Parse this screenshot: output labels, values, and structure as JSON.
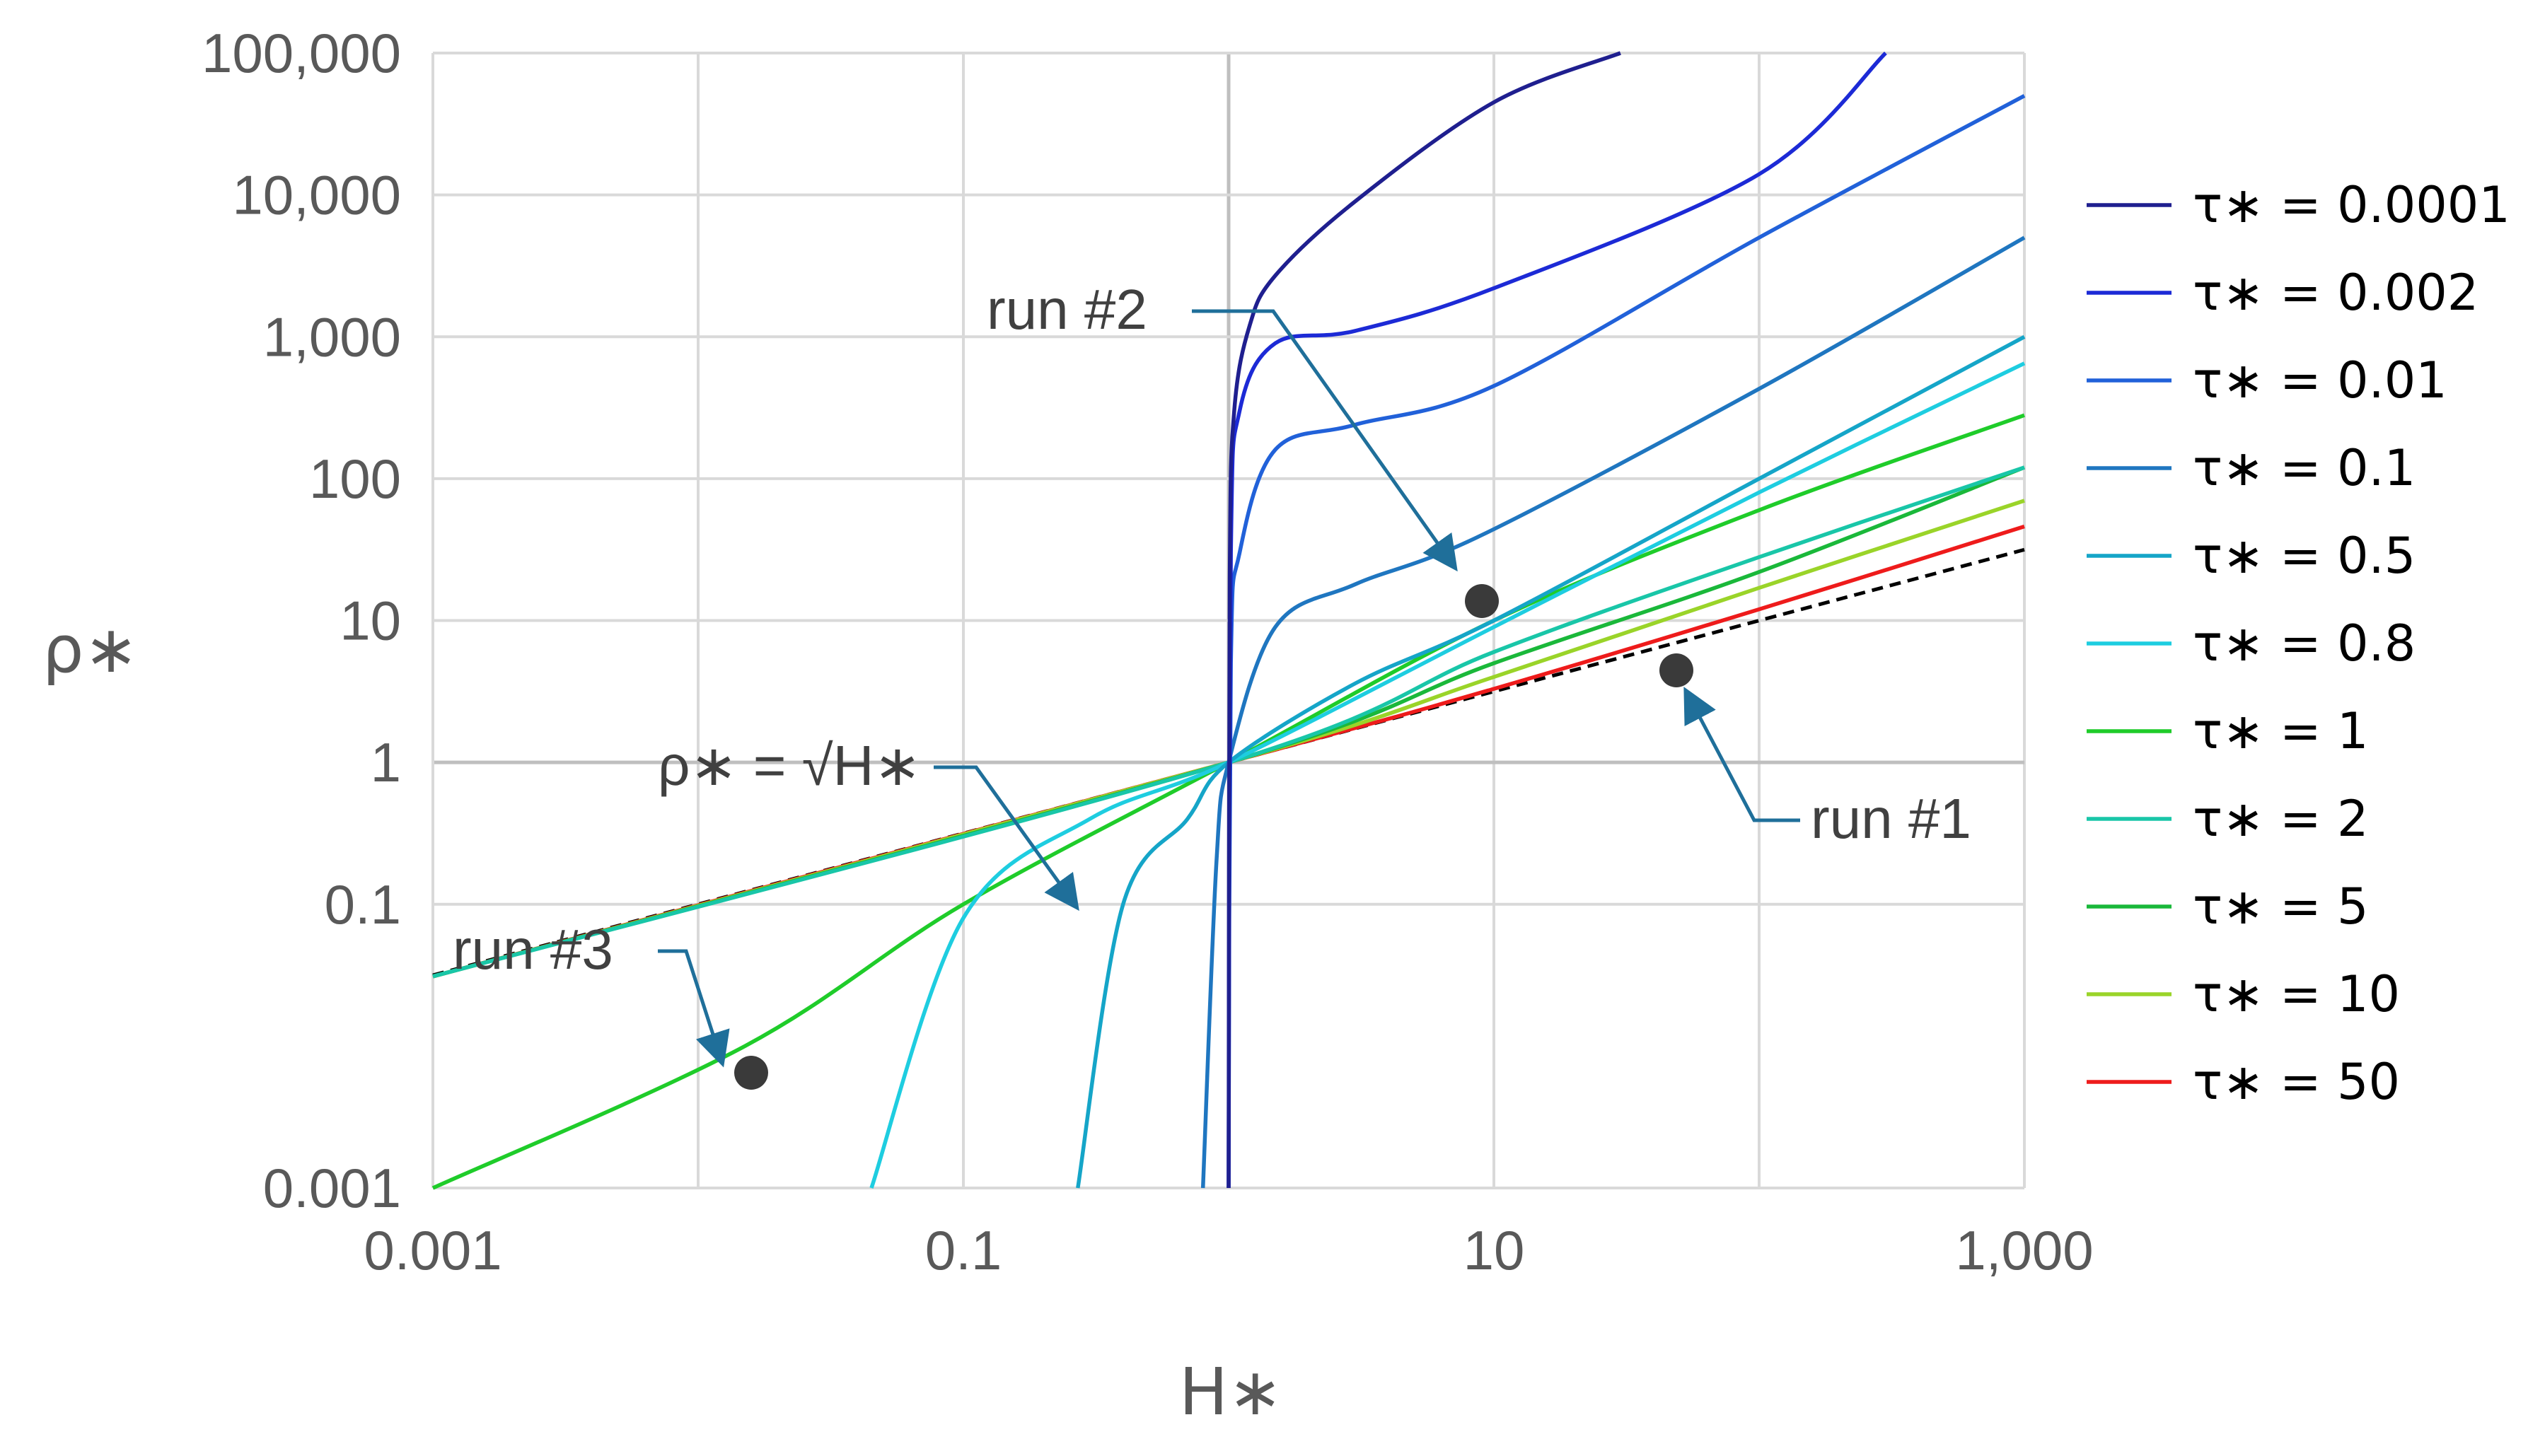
{
  "chart_data": {
    "type": "line",
    "title": "",
    "xlabel": "H∗",
    "ylabel": "ρ∗",
    "x_scale": "log",
    "y_scale": "log",
    "xlim": [
      0.001,
      1000
    ],
    "ylim": [
      0.001,
      100000
    ],
    "x_ticks": [
      0.001,
      0.1,
      10,
      1000
    ],
    "x_tick_labels": [
      "0.001",
      "0.1",
      "10",
      "1,000"
    ],
    "y_ticks": [
      0.001,
      0.1,
      1,
      10,
      100,
      1000,
      10000,
      100000
    ],
    "y_tick_labels": [
      "0.001",
      "0.1",
      "1",
      "10",
      "100",
      "1,000",
      "10,000",
      "100,000"
    ],
    "grid": true,
    "legend_position": "right",
    "series": [
      {
        "name": "τ∗ = 0.0001",
        "color": "#1f1f8f",
        "points": [
          [
            1,
            0.001
          ],
          [
            1.01,
            20
          ],
          [
            1.05,
            300
          ],
          [
            1.2,
            1200
          ],
          [
            1.5,
            2700
          ],
          [
            3,
            9000
          ],
          [
            10,
            45000
          ],
          [
            30,
            120000
          ]
        ]
      },
      {
        "name": "τ∗ = 0.002",
        "color": "#1c2ad6",
        "points": [
          [
            1,
            0.001
          ],
          [
            1.02,
            30
          ],
          [
            1.1,
            300
          ],
          [
            1.5,
            900
          ],
          [
            3,
            1100
          ],
          [
            10,
            2200
          ],
          [
            100,
            14000
          ],
          [
            300,
            100000
          ]
        ]
      },
      {
        "name": "τ∗ = 0.01",
        "color": "#2161d9",
        "points": [
          [
            1,
            0.001
          ],
          [
            1.02,
            5
          ],
          [
            1.1,
            30
          ],
          [
            1.5,
            160
          ],
          [
            3,
            240
          ],
          [
            10,
            450
          ],
          [
            100,
            5000
          ],
          [
            1000,
            50000
          ]
        ]
      },
      {
        "name": "τ∗ = 0.1",
        "color": "#1f76c0",
        "points": [
          [
            0.8,
            0.001
          ],
          [
            0.9,
            0.2
          ],
          [
            1,
            1
          ],
          [
            1.5,
            9
          ],
          [
            3,
            18
          ],
          [
            9,
            40
          ],
          [
            100,
            430
          ],
          [
            1000,
            5000
          ]
        ]
      },
      {
        "name": "τ∗ = 0.5",
        "color": "#15a5c8",
        "points": [
          [
            0.27,
            0.001
          ],
          [
            0.4,
            0.1
          ],
          [
            0.7,
            0.4
          ],
          [
            1,
            1
          ],
          [
            3,
            3.6
          ],
          [
            10,
            10
          ],
          [
            100,
            100
          ],
          [
            1000,
            1000
          ]
        ]
      },
      {
        "name": "τ∗ = 0.8",
        "color": "#1ecde0",
        "points": [
          [
            0.045,
            0.001
          ],
          [
            0.1,
            0.08
          ],
          [
            0.3,
            0.4
          ],
          [
            1,
            1
          ],
          [
            10,
            9
          ],
          [
            100,
            80
          ],
          [
            1000,
            650
          ]
        ]
      },
      {
        "name": "τ∗ = 1",
        "color": "#1fcc2a",
        "points": [
          [
            0.001,
            0.001
          ],
          [
            0.015,
            0.01
          ],
          [
            0.1,
            0.1
          ],
          [
            1,
            1
          ],
          [
            10,
            10
          ],
          [
            100,
            60
          ],
          [
            1000,
            280
          ]
        ]
      },
      {
        "name": "τ∗ = 2",
        "color": "#19c6a8",
        "points": [
          [
            0.001,
            0.031
          ],
          [
            1,
            1
          ],
          [
            10,
            6
          ],
          [
            100,
            28
          ],
          [
            1000,
            120
          ]
        ]
      },
      {
        "name": "τ∗ = 5",
        "color": "#1ab83a",
        "points": [
          [
            0.001,
            0.031
          ],
          [
            1,
            1
          ],
          [
            10,
            5
          ],
          [
            100,
            22
          ],
          [
            1000,
            120
          ]
        ]
      },
      {
        "name": "τ∗ = 10",
        "color": "#9ad429",
        "points": [
          [
            0.001,
            0.031
          ],
          [
            1,
            1
          ],
          [
            10,
            4
          ],
          [
            100,
            17
          ],
          [
            1000,
            70
          ]
        ]
      },
      {
        "name": "τ∗ = 50",
        "color": "#ee1b1b",
        "points": [
          [
            0.001,
            0.031
          ],
          [
            1,
            1
          ],
          [
            10,
            3.3
          ],
          [
            100,
            12
          ],
          [
            1000,
            46
          ]
        ]
      }
    ],
    "reference_line": {
      "label": "ρ∗ = √H∗",
      "style": "dashed",
      "color": "#000000",
      "points": [
        [
          0.001,
          0.0316
        ],
        [
          1,
          1
        ],
        [
          1000,
          31.6
        ]
      ]
    },
    "markers": [
      {
        "label": "run #1",
        "x": 50,
        "y": 15
      },
      {
        "label": "run #2",
        "x": 9,
        "y": 40
      },
      {
        "label": "run #3",
        "x": 0.015,
        "y": 0.05
      }
    ],
    "annotations": [
      {
        "text": "run #2",
        "target": [
          9,
          40
        ]
      },
      {
        "text": "run #1",
        "target": [
          50,
          15
        ]
      },
      {
        "text": "run #3",
        "target": [
          0.015,
          0.05
        ]
      },
      {
        "text": "ρ∗ = √H∗",
        "target": [
          0.1,
          0.2
        ]
      }
    ]
  }
}
